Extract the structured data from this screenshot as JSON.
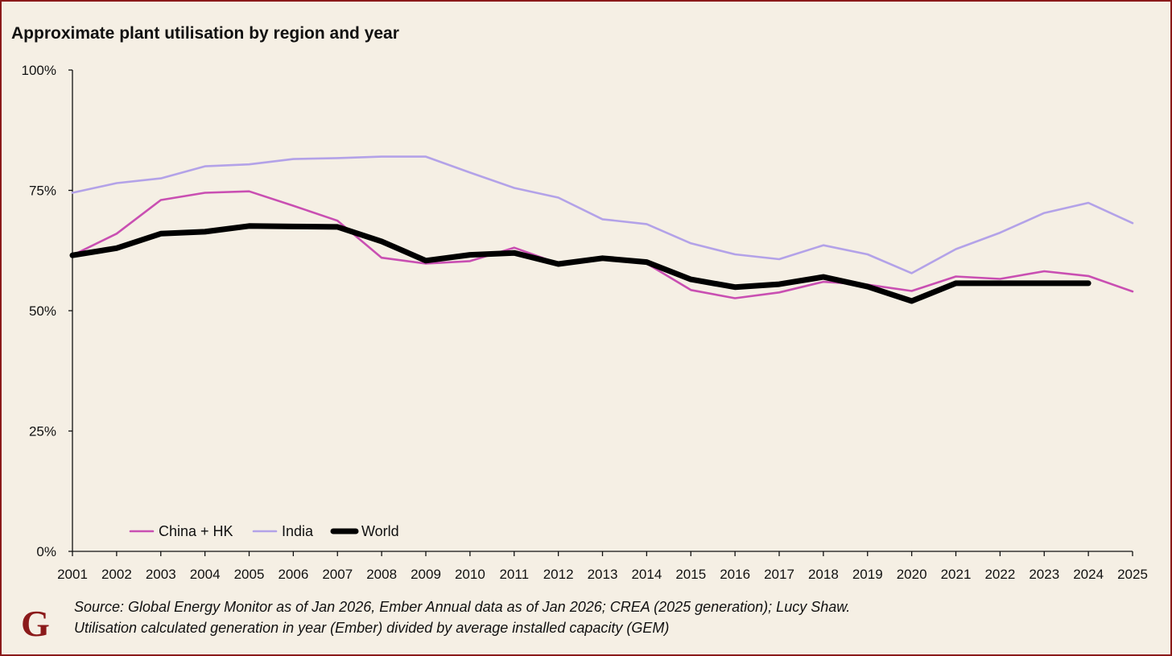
{
  "chart_data": {
    "type": "line",
    "title": "Approximate plant utilisation by region and year",
    "xlabel": "",
    "ylabel": "",
    "ylim": [
      0,
      100
    ],
    "y_ticks": [
      "0%",
      "25%",
      "50%",
      "75%",
      "100%"
    ],
    "y_tick_values": [
      0,
      25,
      50,
      75,
      100
    ],
    "x": [
      "2001",
      "2002",
      "2003",
      "2004",
      "2005",
      "2006",
      "2007",
      "2008",
      "2009",
      "2010",
      "2011",
      "2012",
      "2013",
      "2014",
      "2015",
      "2016",
      "2017",
      "2018",
      "2019",
      "2020",
      "2021",
      "2022",
      "2023",
      "2024",
      "2025"
    ],
    "series": [
      {
        "name": "China + HK",
        "color": "#c94fb2",
        "values": [
          61.5,
          66,
          73,
          74.5,
          74.8,
          71.8,
          68.7,
          61,
          59.8,
          60.3,
          63.1,
          59.8,
          60.7,
          59.8,
          54.3,
          52.6,
          53.8,
          56,
          55.4,
          54.1,
          57.1,
          56.6,
          58.2,
          57.2,
          54
        ]
      },
      {
        "name": "India",
        "color": "#b3a2e8",
        "values": [
          74.5,
          76.5,
          77.5,
          80,
          80.4,
          81.5,
          81.7,
          82,
          82,
          78.7,
          75.5,
          73.5,
          69,
          68,
          64,
          61.7,
          60.7,
          63.6,
          61.7,
          57.8,
          62.8,
          66.2,
          70.3,
          72.4,
          68.2
        ]
      },
      {
        "name": "World",
        "color": "#000000",
        "values": [
          61.5,
          63,
          66,
          66.4,
          67.6,
          67.5,
          67.4,
          64.4,
          60.4,
          61.6,
          62,
          59.7,
          60.9,
          60.1,
          56.5,
          54.9,
          55.5,
          57,
          55,
          52,
          55.7,
          55.7,
          55.7,
          55.7,
          null
        ]
      }
    ],
    "legend": [
      "China + HK",
      "India",
      "World"
    ],
    "legend_position": "bottom-left"
  },
  "footer": {
    "source_line1": "Source: Global Energy Monitor as of Jan 2026, Ember Annual data as of Jan 2026; CREA (2025 generation); Lucy Shaw.",
    "source_line2": "Utilisation calculated generation in year (Ember) divided by average installed capacity (GEM)",
    "logo": "G"
  }
}
